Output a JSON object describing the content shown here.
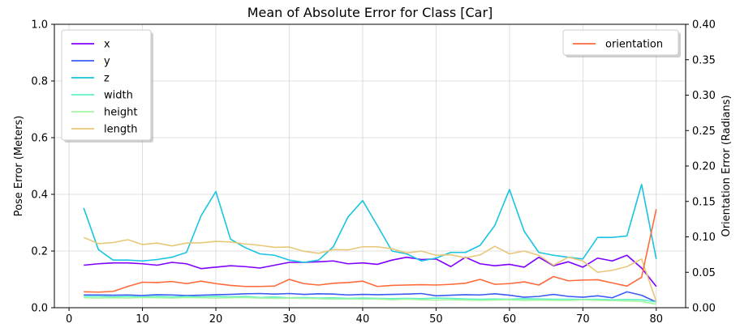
{
  "chart_data": {
    "type": "line",
    "title": "Mean of Absolute Error for Class [Car]",
    "xlabel": "",
    "ylabel": "Pose Error (Meters)",
    "ylabel_right": "Orientation Error (Radians)",
    "xlim": [
      -2,
      84
    ],
    "ylim": [
      0,
      1.0
    ],
    "ylim_right": [
      0,
      0.4
    ],
    "x_ticks": [
      "0",
      "10",
      "20",
      "30",
      "40",
      "50",
      "60",
      "70",
      "80"
    ],
    "y_ticks": [
      "0.0",
      "0.2",
      "0.4",
      "0.6",
      "0.8",
      "1.0"
    ],
    "y_ticks_right": [
      "0.00",
      "0.05",
      "0.10",
      "0.15",
      "0.20",
      "0.25",
      "0.30",
      "0.35",
      "0.40"
    ],
    "grid": true,
    "legend_left_placement": "top-left",
    "legend_right_placement": "top-right",
    "x": [
      2,
      4,
      6,
      8,
      10,
      12,
      14,
      16,
      18,
      20,
      22,
      24,
      26,
      28,
      30,
      32,
      34,
      36,
      38,
      40,
      42,
      44,
      46,
      48,
      50,
      52,
      54,
      56,
      58,
      60,
      62,
      64,
      66,
      68,
      70,
      72,
      74,
      76,
      78,
      80
    ],
    "series": [
      {
        "name": "x",
        "axis": "left",
        "color": "#7f00ff",
        "values": [
          0.15,
          0.155,
          0.158,
          0.158,
          0.155,
          0.15,
          0.16,
          0.155,
          0.138,
          0.143,
          0.148,
          0.145,
          0.14,
          0.15,
          0.16,
          0.16,
          0.162,
          0.165,
          0.155,
          0.158,
          0.153,
          0.168,
          0.178,
          0.17,
          0.172,
          0.145,
          0.178,
          0.155,
          0.148,
          0.153,
          0.143,
          0.178,
          0.148,
          0.162,
          0.143,
          0.175,
          0.165,
          0.185,
          0.14,
          0.075
        ]
      },
      {
        "name": "y",
        "axis": "left",
        "color": "#3a5cf4",
        "values": [
          0.045,
          0.045,
          0.044,
          0.045,
          0.043,
          0.046,
          0.045,
          0.043,
          0.044,
          0.046,
          0.047,
          0.049,
          0.05,
          0.048,
          0.05,
          0.047,
          0.049,
          0.048,
          0.045,
          0.047,
          0.046,
          0.047,
          0.048,
          0.05,
          0.042,
          0.044,
          0.046,
          0.045,
          0.049,
          0.044,
          0.037,
          0.04,
          0.047,
          0.04,
          0.037,
          0.042,
          0.035,
          0.056,
          0.044,
          0.02
        ]
      },
      {
        "name": "z",
        "axis": "left",
        "color": "#18c4e0",
        "values": [
          0.352,
          0.205,
          0.168,
          0.168,
          0.165,
          0.17,
          0.178,
          0.195,
          0.325,
          0.41,
          0.242,
          0.212,
          0.19,
          0.185,
          0.168,
          0.16,
          0.168,
          0.215,
          0.32,
          0.378,
          0.29,
          0.2,
          0.19,
          0.165,
          0.175,
          0.195,
          0.195,
          0.22,
          0.29,
          0.417,
          0.27,
          0.195,
          0.185,
          0.178,
          0.172,
          0.248,
          0.248,
          0.253,
          0.435,
          0.172
        ]
      },
      {
        "name": "width",
        "axis": "left",
        "color": "#5ef0c8",
        "values": [
          0.04,
          0.04,
          0.038,
          0.04,
          0.038,
          0.04,
          0.038,
          0.04,
          0.038,
          0.04,
          0.038,
          0.04,
          0.036,
          0.038,
          0.035,
          0.036,
          0.034,
          0.035,
          0.033,
          0.034,
          0.033,
          0.032,
          0.033,
          0.032,
          0.034,
          0.033,
          0.031,
          0.03,
          0.031,
          0.03,
          0.032,
          0.031,
          0.03,
          0.03,
          0.029,
          0.03,
          0.028,
          0.029,
          0.028,
          0.02
        ]
      },
      {
        "name": "height",
        "axis": "left",
        "color": "#a4f7a0",
        "values": [
          0.035,
          0.034,
          0.035,
          0.034,
          0.036,
          0.035,
          0.034,
          0.036,
          0.035,
          0.034,
          0.035,
          0.036,
          0.034,
          0.033,
          0.034,
          0.033,
          0.032,
          0.03,
          0.031,
          0.03,
          0.031,
          0.028,
          0.03,
          0.028,
          0.027,
          0.028,
          0.027,
          0.026,
          0.027,
          0.028,
          0.026,
          0.027,
          0.026,
          0.025,
          0.028,
          0.026,
          0.025,
          0.024,
          0.022,
          0.012
        ]
      },
      {
        "name": "length",
        "axis": "left",
        "color": "#e8c878",
        "values": [
          0.248,
          0.226,
          0.23,
          0.24,
          0.223,
          0.228,
          0.218,
          0.228,
          0.229,
          0.234,
          0.232,
          0.225,
          0.22,
          0.213,
          0.214,
          0.199,
          0.192,
          0.205,
          0.204,
          0.215,
          0.215,
          0.208,
          0.193,
          0.2,
          0.185,
          0.187,
          0.176,
          0.186,
          0.217,
          0.19,
          0.2,
          0.185,
          0.15,
          0.178,
          0.165,
          0.125,
          0.132,
          0.145,
          0.172,
          0.022
        ]
      },
      {
        "name": "orientation",
        "axis": "right",
        "color": "#ff6a3a",
        "values": [
          0.0225,
          0.022,
          0.023,
          0.03,
          0.036,
          0.0355,
          0.037,
          0.034,
          0.0375,
          0.034,
          0.0315,
          0.03,
          0.03,
          0.0305,
          0.04,
          0.034,
          0.032,
          0.0345,
          0.0355,
          0.0375,
          0.03,
          0.0315,
          0.032,
          0.0325,
          0.032,
          0.033,
          0.0345,
          0.04,
          0.033,
          0.034,
          0.0365,
          0.032,
          0.044,
          0.038,
          0.039,
          0.0395,
          0.035,
          0.0305,
          0.043,
          0.139
        ]
      }
    ]
  }
}
